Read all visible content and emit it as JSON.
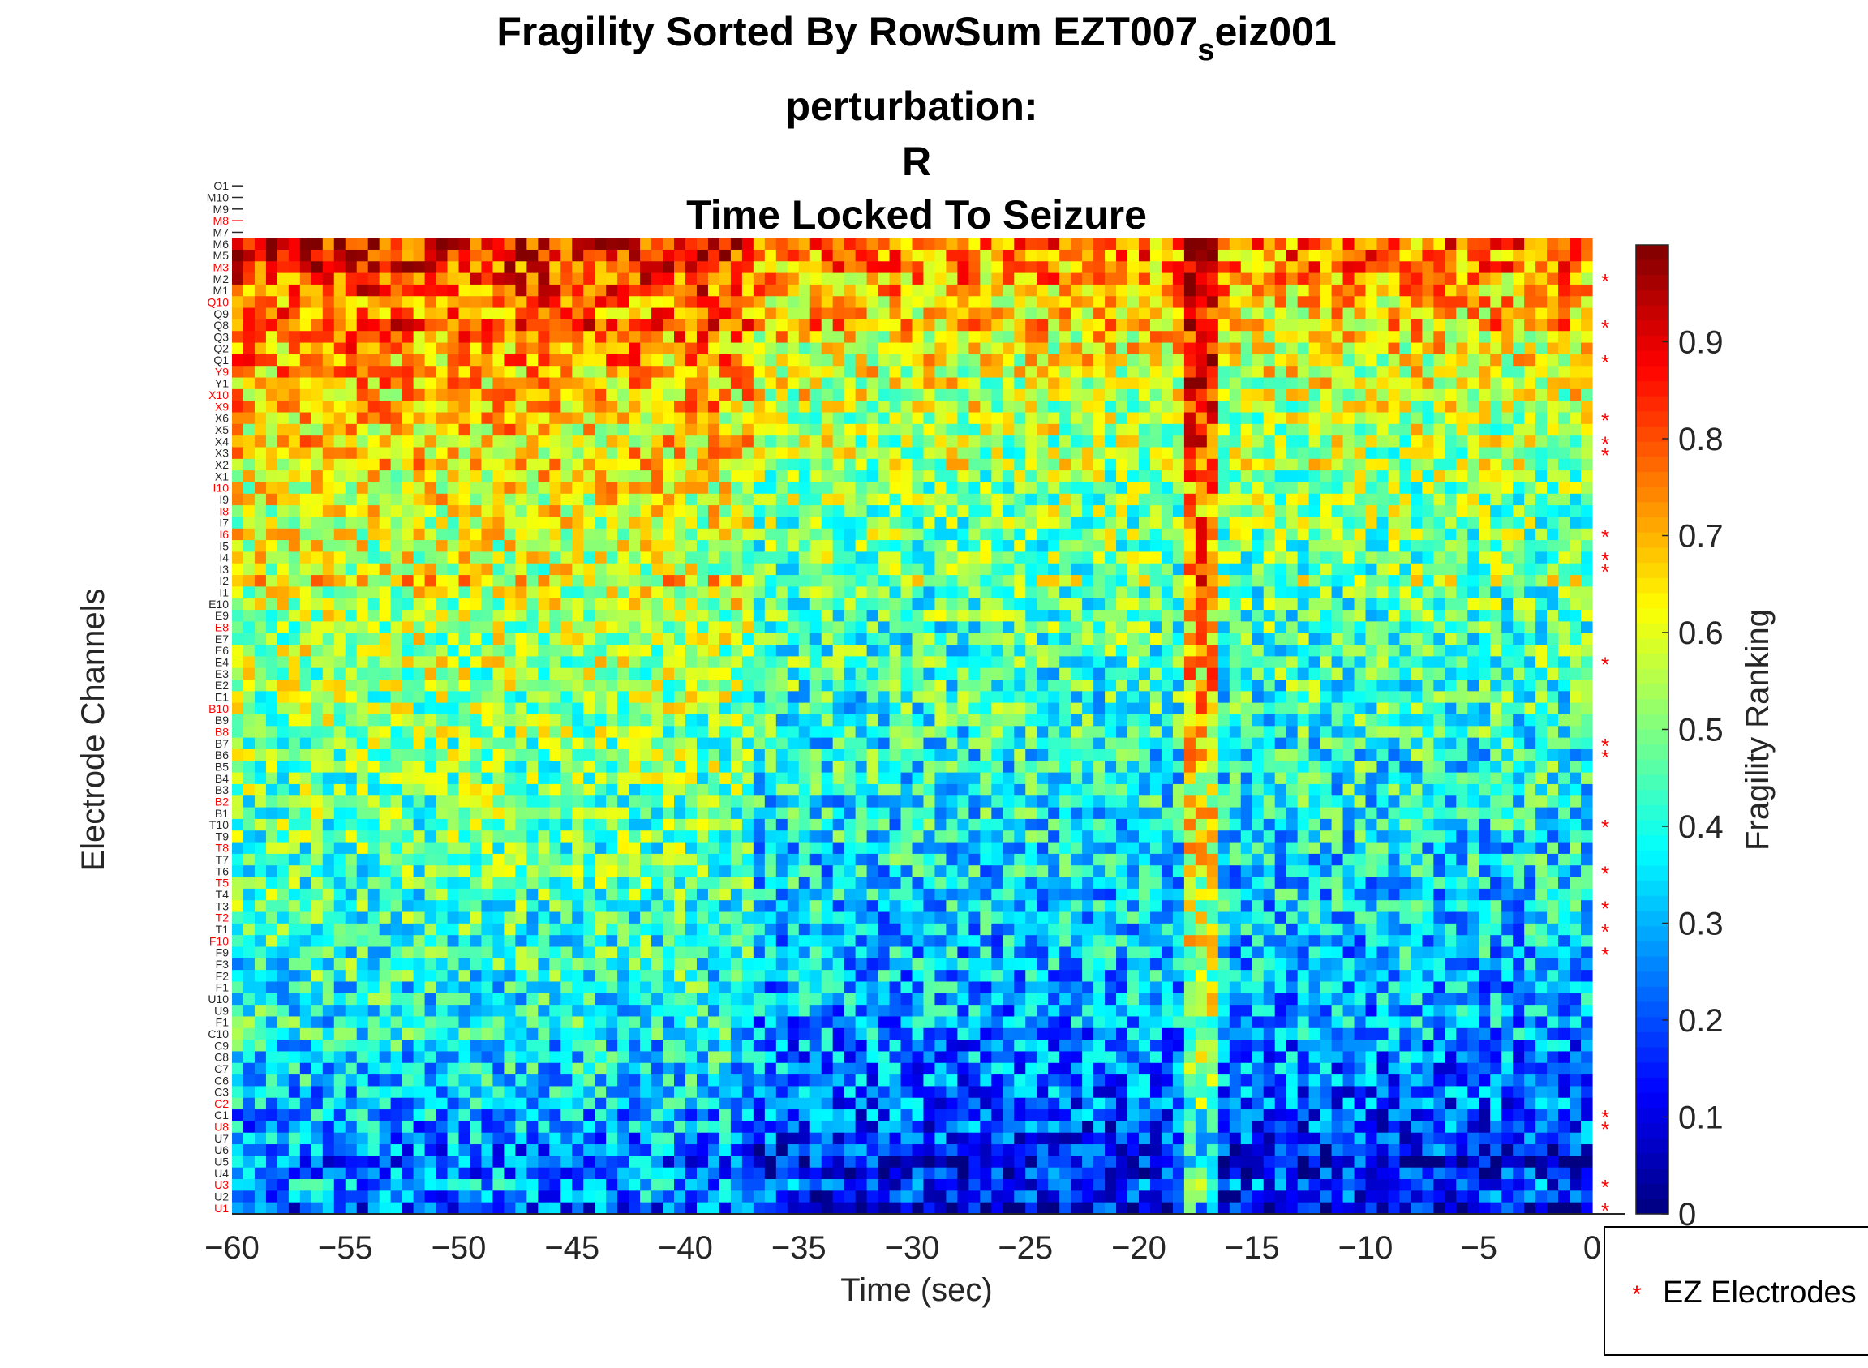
{
  "chart_data": {
    "type": "heatmap",
    "title": {
      "line1_prefix": "Fragility Sorted By RowSum EZT007",
      "line1_subscript": "s",
      "line1_suffix": "eiz001",
      "line2": "perturbation:",
      "line3": "R",
      "line4": "Time Locked To Seizure"
    },
    "xlabel": "Time (sec)",
    "ylabel": "Electrode Channels",
    "colorbar_label": "Fragility Ranking",
    "colormap": "jet",
    "xlim": [
      -60,
      0
    ],
    "x_ticks": [
      -60,
      -55,
      -50,
      -45,
      -40,
      -35,
      -30,
      -25,
      -20,
      -15,
      -10,
      -5,
      0
    ],
    "colorbar_ticks": [
      0,
      0.1,
      0.2,
      0.3,
      0.4,
      0.5,
      0.6,
      0.7,
      0.8,
      0.9
    ],
    "clim": [
      0,
      1
    ],
    "channels_top_to_bottom": [
      "O1",
      "M10",
      "M9",
      "M8",
      "M7",
      "M6",
      "M5",
      "M3",
      "M2",
      "M1",
      "Q10",
      "Q9",
      "Q8",
      "Q3",
      "Q2",
      "Q1",
      "Y9",
      "Y1",
      "X10",
      "X9",
      "X6",
      "X5",
      "X4",
      "X3",
      "X2",
      "X1",
      "I10",
      "I9",
      "I8",
      "I7",
      "I6",
      "I5",
      "I4",
      "I3",
      "I2",
      "I1",
      "E10",
      "E9",
      "E8",
      "E7",
      "E6",
      "E4",
      "E3",
      "E2",
      "E1",
      "B10",
      "B9",
      "B8",
      "B7",
      "B6",
      "B5",
      "B4",
      "B3",
      "B2",
      "B1",
      "T10",
      "T9",
      "T8",
      "T7",
      "T6",
      "T5",
      "T4",
      "T3",
      "T2",
      "T1",
      "F10",
      "F9",
      "F3",
      "F2",
      "F1",
      "U10",
      "U9",
      "F1",
      "C10",
      "C9",
      "C8",
      "C7",
      "C6",
      "C3",
      "C2",
      "C1",
      "U8",
      "U7",
      "U6",
      "U5",
      "U4",
      "U3",
      "U2",
      "U1"
    ],
    "ez_channels": [
      "M8",
      "M3",
      "Q10",
      "Y9",
      "X10",
      "X9",
      "I10",
      "I8",
      "I6",
      "E8",
      "B10",
      "B8",
      "B2",
      "T8",
      "T5",
      "T2",
      "F10",
      "C2",
      "U8",
      "U3",
      "U1"
    ],
    "ez_markers_channels": [
      "M2",
      "Q8",
      "Q1",
      "X6",
      "X4",
      "X3",
      "I6",
      "I4",
      "I3",
      "E4",
      "B7",
      "B6",
      "T10",
      "T6",
      "T3",
      "T1",
      "F9",
      "C1",
      "U8",
      "U3",
      "U1"
    ],
    "legend": {
      "position": "bottom-right",
      "entries": [
        {
          "label": "EZ Electrodes",
          "marker": "*",
          "color": "#ff0000"
        }
      ]
    },
    "row_profiles": {
      "O1": 0,
      "M10": 0,
      "M9": 0,
      "M8": 0,
      "M7": 0,
      "M6": 0.82,
      "M5": 0.8,
      "M3": 0.78,
      "M2": 0.76,
      "M1": 0.75,
      "Q10": 0.72,
      "Q9": 0.7,
      "Q8": 0.74,
      "Q3": 0.68,
      "Q2": 0.67,
      "Q1": 0.66,
      "Y9": 0.64,
      "Y1": 0.63,
      "X10": 0.63,
      "X9": 0.62,
      "X6": 0.6,
      "X5": 0.6,
      "X4": 0.59,
      "X3": 0.58,
      "X2": 0.6,
      "X1": 0.56,
      "I10": 0.56,
      "I9": 0.55,
      "I8": 0.55,
      "I7": 0.54,
      "I6": 0.54,
      "I5": 0.53,
      "I4": 0.53,
      "I3": 0.52,
      "I2": 0.58,
      "I1": 0.51,
      "E10": 0.51,
      "E9": 0.5,
      "E8": 0.5,
      "E7": 0.49,
      "E6": 0.49,
      "E4": 0.49,
      "E3": 0.48,
      "E2": 0.48,
      "E1": 0.47,
      "B10": 0.47,
      "B9": 0.46,
      "B8": 0.46,
      "B7": 0.45,
      "B6": 0.45,
      "B5": 0.45,
      "B4": 0.44,
      "B3": 0.44,
      "B2": 0.43,
      "B1": 0.43,
      "T10": 0.42,
      "T9": 0.42,
      "T8": 0.41,
      "T7": 0.41,
      "T6": 0.4,
      "T5": 0.4,
      "T4": 0.39,
      "T3": 0.39,
      "T2": 0.38,
      "T1": 0.38,
      "F10": 0.37,
      "F9": 0.37,
      "F3": 0.36,
      "F2": 0.36,
      "F1": 0.35,
      "U10": 0.35,
      "U9": 0.34,
      "F1b": 0.34,
      "C10": 0.33,
      "C9": 0.3,
      "C8": 0.31,
      "C7": 0.3,
      "C6": 0.29,
      "C3": 0.28,
      "C2": 0.27,
      "C1": 0.26,
      "U8": 0.24,
      "U7": 0.23,
      "U6": 0.2,
      "U5": 0.18,
      "U4": 0.2,
      "U3": 0.25,
      "U2": 0.22,
      "U1": 0.15
    },
    "n_time_bins": 120
  }
}
